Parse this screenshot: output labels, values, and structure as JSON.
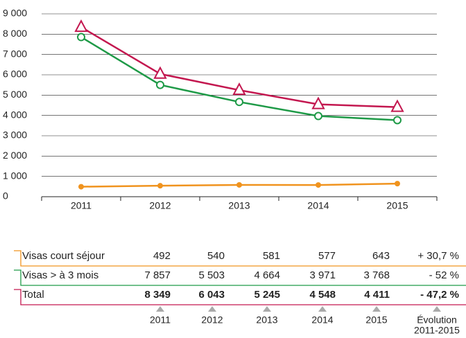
{
  "chart_data": {
    "type": "line",
    "categories": [
      "2011",
      "2012",
      "2013",
      "2014",
      "2015"
    ],
    "ylim": [
      0,
      9000
    ],
    "yticks": [
      {
        "value": 0,
        "label": "0"
      },
      {
        "value": 1000,
        "label": "1 000"
      },
      {
        "value": 2000,
        "label": "2 000"
      },
      {
        "value": 3000,
        "label": "3 000"
      },
      {
        "value": 4000,
        "label": "4 000"
      },
      {
        "value": 5000,
        "label": "5 000"
      },
      {
        "value": 6000,
        "label": "6 000"
      },
      {
        "value": 7000,
        "label": "7 000"
      },
      {
        "value": 8000,
        "label": "8 000"
      },
      {
        "value": 9000,
        "label": "9 000"
      }
    ],
    "grid": true,
    "series": [
      {
        "name": "Visas court séjour",
        "color": "#f0931e",
        "marker": "dot",
        "values": [
          492,
          540,
          581,
          577,
          643
        ],
        "value_labels": [
          "492",
          "540",
          "581",
          "577",
          "643"
        ],
        "evolution": "+ 30,7 %"
      },
      {
        "name": "Visas > à 3 mois",
        "color": "#1e9a47",
        "marker": "circle",
        "values": [
          7857,
          5503,
          4664,
          3971,
          3768
        ],
        "value_labels": [
          "7 857",
          "5 503",
          "4 664",
          "3 971",
          "3 768"
        ],
        "evolution": "- 52 %"
      },
      {
        "name": "Total",
        "color": "#c3174f",
        "marker": "triangle",
        "values": [
          8349,
          6043,
          5245,
          4548,
          4411
        ],
        "value_labels": [
          "8 349",
          "6 043",
          "5 245",
          "4 548",
          "4 411"
        ],
        "evolution": "- 47,2 %"
      }
    ],
    "evolution_header": "Évolution",
    "evolution_period": "2011-2015"
  }
}
